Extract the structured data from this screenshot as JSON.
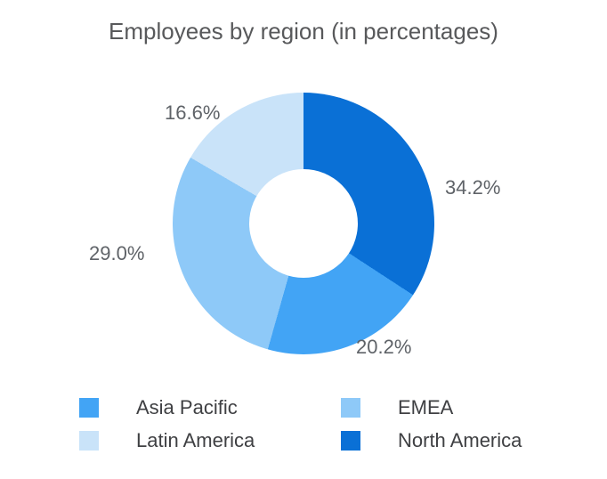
{
  "chart_data": {
    "type": "pie",
    "subtype": "donut",
    "title": "Employees by region (in percentages)",
    "legend_position": "bottom",
    "start_angle_deg": 0,
    "direction": "clockwise",
    "slices": [
      {
        "label": "North America",
        "value": 34.2,
        "pct_label": "34.2%",
        "color": "#0a70d6"
      },
      {
        "label": "Asia Pacific",
        "value": 20.2,
        "pct_label": "20.2%",
        "color": "#42a4f5"
      },
      {
        "label": "EMEA",
        "value": 29.0,
        "pct_label": "29.0%",
        "color": "#8ec9f8"
      },
      {
        "label": "Latin America",
        "value": 16.6,
        "pct_label": "16.6%",
        "color": "#c9e3f9"
      }
    ],
    "legend_order": [
      1,
      2,
      3,
      0
    ],
    "colors": {
      "title_text": "#58595b",
      "value_labels": "#5f6368",
      "legend_text": "#3f4043",
      "background": "#ffffff"
    }
  }
}
